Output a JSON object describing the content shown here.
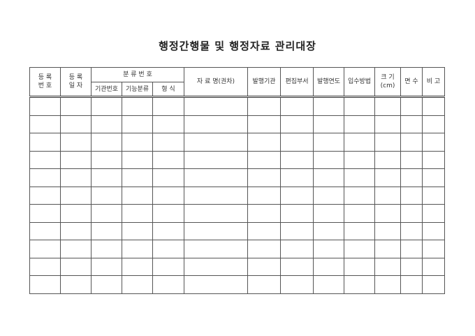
{
  "title": "행정간행물 및 행정자료 관리대장",
  "headers": {
    "reg_no": [
      "등 록",
      "번 호"
    ],
    "reg_date": [
      "등 록",
      "일 자"
    ],
    "class_no": "분 류 번 호",
    "agency_no": "기관번호",
    "function_class": "기능분류",
    "format": "형 식",
    "title_name": "자 료 명(권차)",
    "publisher": "발행기관",
    "editor": "편집부서",
    "pub_year": "발행연도",
    "acquisition": "입수방법",
    "size": [
      "크 기",
      "(cm)"
    ],
    "pages": "면 수",
    "remarks": "비 고"
  },
  "rows": 11
}
